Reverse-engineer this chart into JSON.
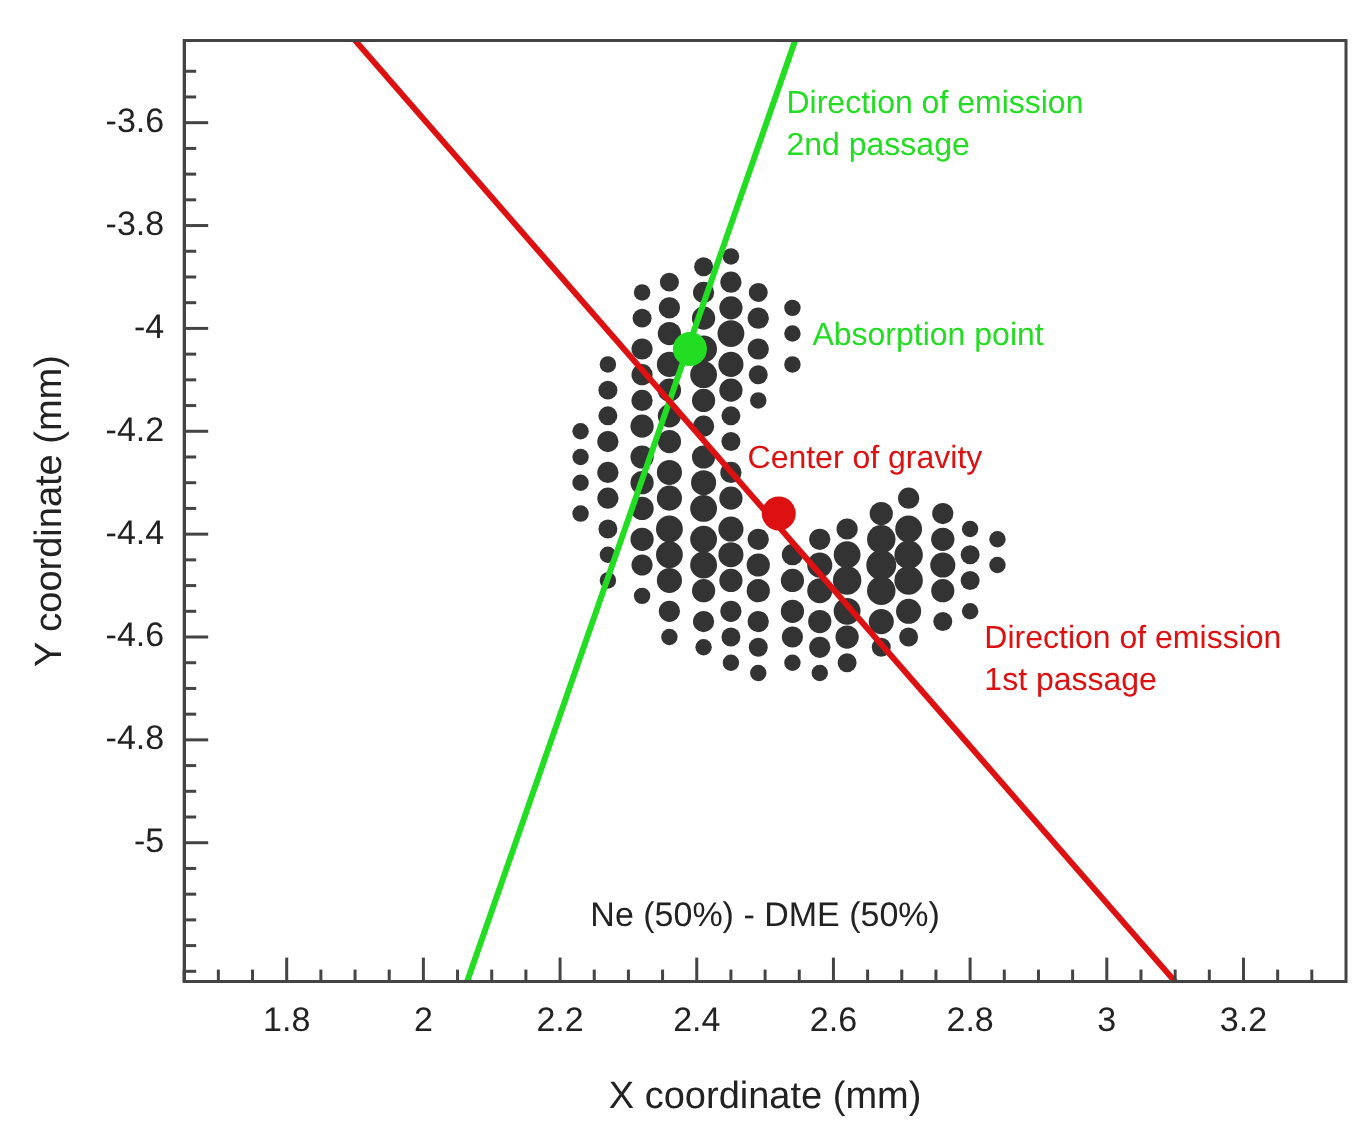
{
  "chart_data": {
    "type": "scatter",
    "xlabel": "X coordinate (mm)",
    "ylabel": "Y coordinate (mm)",
    "xlim": [
      1.65,
      3.35
    ],
    "ylim": [
      -5.27,
      -3.44
    ],
    "xticks": [
      {
        "value": 1.65,
        "label": null
      },
      {
        "value": 1.7,
        "label": null
      },
      {
        "value": 1.75,
        "label": null
      },
      1.8,
      {
        "value": 1.85,
        "label": null
      },
      {
        "value": 1.9,
        "label": null
      },
      {
        "value": 1.95,
        "label": null
      },
      2,
      {
        "value": 2.05,
        "label": null
      },
      {
        "value": 2.1,
        "label": null
      },
      {
        "value": 2.15,
        "label": null
      },
      2.2,
      {
        "value": 2.25,
        "label": null
      },
      {
        "value": 2.3,
        "label": null
      },
      {
        "value": 2.35,
        "label": null
      },
      2.4,
      {
        "value": 2.45,
        "label": null
      },
      {
        "value": 2.5,
        "label": null
      },
      {
        "value": 2.55,
        "label": null
      },
      2.6,
      {
        "value": 2.65,
        "label": null
      },
      {
        "value": 2.7,
        "label": null
      },
      {
        "value": 2.75,
        "label": null
      },
      2.8,
      {
        "value": 2.85,
        "label": null
      },
      {
        "value": 2.9,
        "label": null
      },
      {
        "value": 2.95,
        "label": null
      },
      3,
      {
        "value": 3.05,
        "label": null
      },
      {
        "value": 3.1,
        "label": null
      },
      {
        "value": 3.15,
        "label": null
      },
      3.2,
      {
        "value": 3.25,
        "label": null
      },
      {
        "value": 3.3,
        "label": null
      }
    ],
    "yticks": [
      {
        "value": -5.25,
        "label": null
      },
      {
        "value": -5.2,
        "label": null
      },
      {
        "value": -5.15,
        "label": null
      },
      {
        "value": -5.1,
        "label": null
      },
      {
        "value": -5.05,
        "label": null
      },
      -5,
      {
        "value": -4.95,
        "label": null
      },
      {
        "value": -4.9,
        "label": null
      },
      {
        "value": -4.85,
        "label": null
      },
      -4.8,
      {
        "value": -4.75,
        "label": null
      },
      {
        "value": -4.7,
        "label": null
      },
      {
        "value": -4.65,
        "label": null
      },
      -4.6,
      {
        "value": -4.55,
        "label": null
      },
      {
        "value": -4.5,
        "label": null
      },
      {
        "value": -4.45,
        "label": null
      },
      -4.4,
      {
        "value": -4.35,
        "label": null
      },
      {
        "value": -4.3,
        "label": null
      },
      {
        "value": -4.25,
        "label": null
      },
      -4.2,
      {
        "value": -4.15,
        "label": null
      },
      {
        "value": -4.1,
        "label": null
      },
      {
        "value": -4.05,
        "label": null
      },
      -4,
      {
        "value": -3.95,
        "label": null
      },
      {
        "value": -3.9,
        "label": null
      },
      {
        "value": -3.85,
        "label": null
      },
      -3.8,
      {
        "value": -3.75,
        "label": null
      },
      {
        "value": -3.7,
        "label": null
      },
      {
        "value": -3.65,
        "label": null
      },
      -3.6,
      {
        "value": -3.55,
        "label": null
      },
      {
        "value": -3.5,
        "label": null
      }
    ],
    "series": [
      {
        "type": "bubble",
        "color": "#333333",
        "x": [
          2.23,
          2.23,
          2.23,
          2.23,
          2.27,
          2.27,
          2.27,
          2.27,
          2.27,
          2.27,
          2.27,
          2.27,
          2.27,
          2.32,
          2.32,
          2.32,
          2.32,
          2.32,
          2.32,
          2.32,
          2.32,
          2.32,
          2.32,
          2.32,
          2.32,
          2.36,
          2.36,
          2.36,
          2.36,
          2.36,
          2.36,
          2.36,
          2.36,
          2.36,
          2.36,
          2.36,
          2.36,
          2.36,
          2.36,
          2.41,
          2.41,
          2.41,
          2.41,
          2.41,
          2.41,
          2.41,
          2.41,
          2.41,
          2.41,
          2.41,
          2.41,
          2.41,
          2.41,
          2.41,
          2.45,
          2.45,
          2.45,
          2.45,
          2.45,
          2.45,
          2.45,
          2.45,
          2.45,
          2.45,
          2.45,
          2.45,
          2.45,
          2.45,
          2.45,
          2.45,
          2.49,
          2.49,
          2.49,
          2.49,
          2.49,
          2.49,
          2.49,
          2.49,
          2.49,
          2.49,
          2.49,
          2.54,
          2.54,
          2.54,
          2.54,
          2.54,
          2.54,
          2.54,
          2.54,
          2.58,
          2.58,
          2.58,
          2.58,
          2.58,
          2.58,
          2.62,
          2.62,
          2.62,
          2.62,
          2.62,
          2.62,
          2.67,
          2.67,
          2.67,
          2.67,
          2.67,
          2.67,
          2.71,
          2.71,
          2.71,
          2.71,
          2.71,
          2.71,
          2.76,
          2.76,
          2.76,
          2.76,
          2.76,
          2.8,
          2.8,
          2.8,
          2.8,
          2.84,
          2.84
        ],
        "values": [
          -4.2,
          -4.25,
          -4.3,
          -4.36,
          -4.07,
          -4.12,
          -4.17,
          -4.22,
          -4.28,
          -4.33,
          -4.39,
          -4.44,
          -4.49,
          -3.93,
          -3.98,
          -4.04,
          -4.09,
          -4.14,
          -4.19,
          -4.25,
          -4.3,
          -4.35,
          -4.41,
          -4.46,
          -4.52,
          -3.91,
          -3.96,
          -4.01,
          -4.07,
          -4.12,
          -4.17,
          -4.22,
          -4.28,
          -4.33,
          -4.39,
          -4.44,
          -4.49,
          -4.55,
          -4.6,
          -3.88,
          -3.93,
          -3.98,
          -4.04,
          -4.09,
          -4.14,
          -4.19,
          -4.25,
          -4.3,
          -4.35,
          -4.41,
          -4.46,
          -4.51,
          -4.57,
          -4.62,
          -3.86,
          -3.91,
          -3.96,
          -4.01,
          -4.07,
          -4.12,
          -4.17,
          -4.22,
          -4.28,
          -4.33,
          -4.39,
          -4.44,
          -4.49,
          -4.55,
          -4.6,
          -4.65,
          -3.93,
          -3.98,
          -4.04,
          -4.09,
          -4.14,
          -4.41,
          -4.46,
          -4.51,
          -4.57,
          -4.62,
          -4.67,
          -3.96,
          -4.01,
          -4.07,
          -4.44,
          -4.49,
          -4.55,
          -4.6,
          -4.65,
          -4.41,
          -4.46,
          -4.51,
          -4.57,
          -4.62,
          -4.67,
          -4.39,
          -4.44,
          -4.49,
          -4.55,
          -4.6,
          -4.65,
          -4.36,
          -4.41,
          -4.46,
          -4.51,
          -4.57,
          -4.62,
          -4.33,
          -4.39,
          -4.44,
          -4.49,
          -4.55,
          -4.6,
          -4.36,
          -4.41,
          -4.46,
          -4.51,
          -4.57,
          -4.39,
          -4.44,
          -4.49,
          -4.55,
          -4.41,
          -4.46
        ],
        "sizes": [
          0.3,
          0.3,
          0.3,
          0.3,
          0.3,
          0.4,
          0.4,
          0.5,
          0.5,
          0.5,
          0.4,
          0.3,
          0.3,
          0.3,
          0.4,
          0.5,
          0.5,
          0.5,
          0.6,
          0.6,
          0.6,
          0.6,
          0.6,
          0.5,
          0.3,
          0.4,
          0.5,
          0.6,
          0.7,
          0.6,
          0.6,
          0.6,
          0.7,
          0.7,
          0.8,
          0.8,
          0.7,
          0.5,
          0.3,
          0.4,
          0.5,
          0.6,
          0.8,
          0.8,
          0.6,
          0.5,
          0.6,
          0.7,
          0.8,
          0.8,
          0.8,
          0.6,
          0.5,
          0.3,
          0.3,
          0.5,
          0.6,
          0.8,
          0.7,
          0.6,
          0.4,
          0.4,
          0.5,
          0.6,
          0.7,
          0.7,
          0.6,
          0.5,
          0.4,
          0.3,
          0.4,
          0.5,
          0.5,
          0.4,
          0.3,
          0.5,
          0.6,
          0.6,
          0.5,
          0.4,
          0.3,
          0.3,
          0.3,
          0.3,
          0.5,
          0.6,
          0.6,
          0.5,
          0.3,
          0.5,
          0.7,
          0.7,
          0.6,
          0.5,
          0.3,
          0.5,
          0.8,
          0.9,
          0.8,
          0.6,
          0.4,
          0.6,
          0.9,
          1,
          0.9,
          0.7,
          0.4,
          0.5,
          0.8,
          0.9,
          0.9,
          0.7,
          0.4,
          0.5,
          0.6,
          0.7,
          0.6,
          0.4,
          0.3,
          0.4,
          0.4,
          0.3,
          0.3,
          0.3
        ]
      },
      {
        "type": "line",
        "color": "#22dd22",
        "x": [
          2.064,
          2.544
        ],
        "values": [
          -5.27,
          -3.44
        ]
      },
      {
        "type": "line",
        "color": "#dd1111",
        "x": [
          1.9,
          3.1
        ],
        "values": [
          -3.44,
          -5.27
        ]
      },
      {
        "type": "scatter",
        "color": "#22dd22",
        "x": [
          2.39
        ],
        "values": [
          -4.04
        ]
      },
      {
        "type": "scatter",
        "color": "#dd1111",
        "x": [
          2.52
        ],
        "values": [
          -4.36
        ]
      }
    ],
    "annotations": [
      {
        "text": "Direction of emission\n2nd passage",
        "x": 2.502,
        "y": -3.6
      },
      {
        "text": "Absorption point",
        "x": 2.54,
        "y": -4.01
      },
      {
        "text": "Center of gravity",
        "x": 2.431,
        "y": -4.25
      },
      {
        "text": "Direction of emission\n1st passage",
        "x": 2.687,
        "y": -4.64
      },
      "Ne (50%) - DME (50%)"
    ]
  }
}
